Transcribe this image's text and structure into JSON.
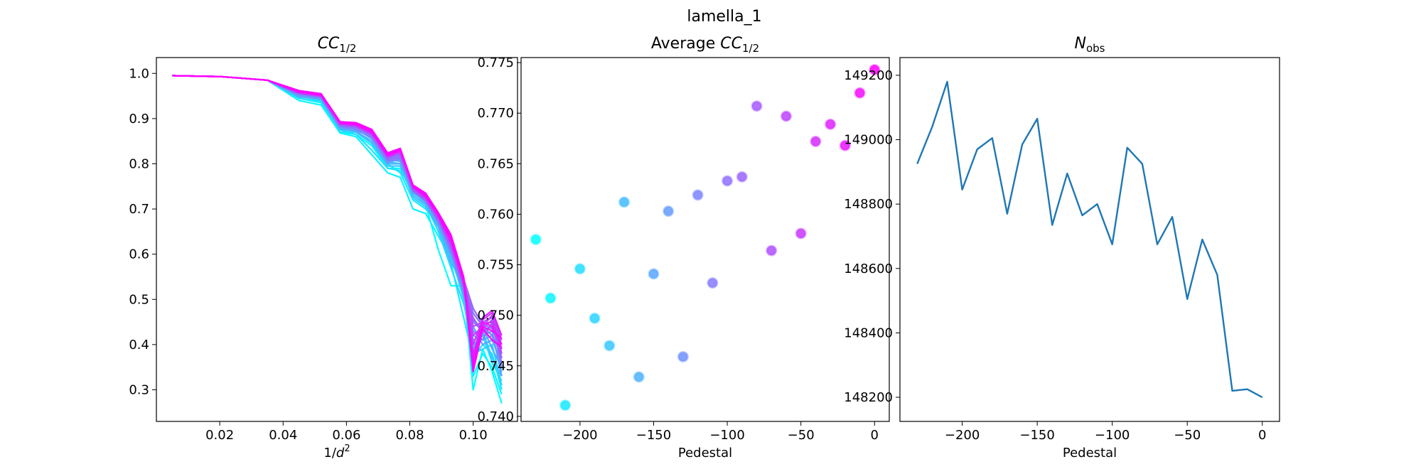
{
  "figure": {
    "suptitle": "lamella_1"
  },
  "chart_data": [
    {
      "type": "line",
      "title_main": "CC",
      "title_sub": "1/2",
      "xlabel_main": "1/d",
      "xlabel_sup": "2",
      "xlim": [
        0.0,
        0.114
      ],
      "ylim": [
        0.23,
        1.035
      ],
      "xticks": [
        0.02,
        0.04,
        0.06,
        0.08,
        0.1
      ],
      "xtick_labels": [
        "0.02",
        "0.04",
        "0.06",
        "0.08",
        "0.10"
      ],
      "yticks": [
        0.3,
        0.4,
        0.5,
        0.6,
        0.7,
        0.8,
        0.9,
        1.0
      ],
      "ytick_labels": [
        "0.3",
        "0.4",
        "0.5",
        "0.6",
        "0.7",
        "0.8",
        "0.9",
        "1.0"
      ],
      "colormap": [
        "#00ffff",
        "#ff00ff"
      ],
      "series_count": 24,
      "x": [
        0.005,
        0.02,
        0.035,
        0.045,
        0.052,
        0.058,
        0.063,
        0.068,
        0.073,
        0.077,
        0.081,
        0.085,
        0.089,
        0.093,
        0.097,
        0.1,
        0.103,
        0.106,
        0.109
      ],
      "series": [
        {
          "values": [
            0.995,
            0.993,
            0.985,
            0.945,
            0.935,
            0.87,
            0.865,
            0.84,
            0.79,
            0.79,
            0.73,
            0.71,
            0.61,
            0.53,
            0.53,
            0.3,
            0.39,
            0.34,
            0.27
          ]
        },
        {
          "values": [
            0.995,
            0.993,
            0.985,
            0.94,
            0.93,
            0.868,
            0.86,
            0.82,
            0.78,
            0.77,
            0.7,
            0.69,
            0.64,
            0.59,
            0.51,
            0.33,
            0.38,
            0.35,
            0.29
          ]
        },
        {
          "values": [
            0.995,
            0.993,
            0.985,
            0.95,
            0.94,
            0.87,
            0.87,
            0.85,
            0.8,
            0.78,
            0.72,
            0.7,
            0.67,
            0.58,
            0.46,
            0.37,
            0.4,
            0.38,
            0.3
          ]
        },
        {
          "values": [
            0.995,
            0.993,
            0.985,
            0.945,
            0.938,
            0.875,
            0.865,
            0.83,
            0.79,
            0.785,
            0.74,
            0.71,
            0.65,
            0.57,
            0.49,
            0.4,
            0.42,
            0.36,
            0.32
          ]
        },
        {
          "values": [
            0.995,
            0.993,
            0.985,
            0.952,
            0.945,
            0.88,
            0.875,
            0.86,
            0.805,
            0.8,
            0.725,
            0.705,
            0.66,
            0.6,
            0.5,
            0.38,
            0.39,
            0.4,
            0.31
          ]
        },
        {
          "values": [
            0.995,
            0.993,
            0.985,
            0.95,
            0.942,
            0.878,
            0.87,
            0.845,
            0.795,
            0.795,
            0.735,
            0.715,
            0.665,
            0.59,
            0.52,
            0.35,
            0.43,
            0.37,
            0.33
          ]
        },
        {
          "values": [
            0.995,
            0.993,
            0.985,
            0.955,
            0.948,
            0.882,
            0.88,
            0.865,
            0.81,
            0.805,
            0.745,
            0.72,
            0.67,
            0.61,
            0.53,
            0.42,
            0.41,
            0.42,
            0.34
          ]
        },
        {
          "values": [
            0.995,
            0.993,
            0.985,
            0.948,
            0.944,
            0.876,
            0.872,
            0.85,
            0.8,
            0.8,
            0.73,
            0.71,
            0.66,
            0.58,
            0.54,
            0.39,
            0.44,
            0.39,
            0.35
          ]
        },
        {
          "values": [
            0.995,
            0.993,
            0.985,
            0.953,
            0.946,
            0.884,
            0.878,
            0.855,
            0.808,
            0.808,
            0.74,
            0.725,
            0.675,
            0.62,
            0.51,
            0.44,
            0.4,
            0.41,
            0.36
          ]
        },
        {
          "values": [
            0.995,
            0.993,
            0.985,
            0.951,
            0.943,
            0.88,
            0.874,
            0.86,
            0.802,
            0.812,
            0.738,
            0.718,
            0.668,
            0.6,
            0.525,
            0.41,
            0.42,
            0.43,
            0.33
          ]
        },
        {
          "values": [
            0.995,
            0.993,
            0.985,
            0.956,
            0.95,
            0.886,
            0.882,
            0.862,
            0.815,
            0.815,
            0.748,
            0.722,
            0.672,
            0.615,
            0.535,
            0.45,
            0.43,
            0.44,
            0.37
          ]
        },
        {
          "values": [
            0.995,
            0.993,
            0.985,
            0.954,
            0.947,
            0.883,
            0.876,
            0.858,
            0.806,
            0.81,
            0.742,
            0.716,
            0.678,
            0.605,
            0.515,
            0.43,
            0.41,
            0.45,
            0.35
          ]
        },
        {
          "values": [
            0.995,
            0.993,
            0.985,
            0.957,
            0.949,
            0.887,
            0.884,
            0.866,
            0.812,
            0.818,
            0.745,
            0.724,
            0.68,
            0.625,
            0.54,
            0.47,
            0.44,
            0.42,
            0.38
          ]
        },
        {
          "values": [
            0.995,
            0.993,
            0.985,
            0.955,
            0.948,
            0.885,
            0.88,
            0.863,
            0.809,
            0.814,
            0.739,
            0.719,
            0.674,
            0.612,
            0.528,
            0.46,
            0.425,
            0.445,
            0.36
          ]
        },
        {
          "values": [
            0.995,
            0.993,
            0.985,
            0.958,
            0.951,
            0.889,
            0.886,
            0.868,
            0.817,
            0.82,
            0.747,
            0.727,
            0.683,
            0.628,
            0.545,
            0.48,
            0.445,
            0.435,
            0.39
          ]
        },
        {
          "values": [
            0.995,
            0.993,
            0.985,
            0.956,
            0.949,
            0.886,
            0.882,
            0.864,
            0.813,
            0.822,
            0.743,
            0.721,
            0.677,
            0.618,
            0.532,
            0.455,
            0.435,
            0.455,
            0.37
          ]
        },
        {
          "values": [
            0.995,
            0.993,
            0.985,
            0.959,
            0.952,
            0.89,
            0.888,
            0.87,
            0.819,
            0.825,
            0.749,
            0.729,
            0.686,
            0.632,
            0.548,
            0.44,
            0.45,
            0.46,
            0.4
          ]
        },
        {
          "values": [
            0.995,
            0.993,
            0.985,
            0.957,
            0.95,
            0.888,
            0.884,
            0.866,
            0.815,
            0.828,
            0.746,
            0.724,
            0.681,
            0.622,
            0.538,
            0.42,
            0.44,
            0.465,
            0.38
          ]
        },
        {
          "values": [
            0.995,
            0.993,
            0.985,
            0.96,
            0.953,
            0.891,
            0.889,
            0.872,
            0.82,
            0.83,
            0.75,
            0.731,
            0.688,
            0.636,
            0.542,
            0.4,
            0.455,
            0.47,
            0.41
          ]
        },
        {
          "values": [
            0.995,
            0.993,
            0.985,
            0.958,
            0.951,
            0.889,
            0.886,
            0.868,
            0.817,
            0.826,
            0.748,
            0.726,
            0.684,
            0.626,
            0.535,
            0.38,
            0.445,
            0.45,
            0.39
          ]
        },
        {
          "values": [
            0.995,
            0.993,
            0.985,
            0.961,
            0.954,
            0.892,
            0.89,
            0.874,
            0.822,
            0.832,
            0.752,
            0.733,
            0.69,
            0.64,
            0.548,
            0.37,
            0.46,
            0.475,
            0.42
          ]
        },
        {
          "values": [
            0.995,
            0.993,
            0.985,
            0.959,
            0.952,
            0.89,
            0.887,
            0.87,
            0.818,
            0.829,
            0.749,
            0.728,
            0.686,
            0.63,
            0.54,
            0.36,
            0.45,
            0.44,
            0.4
          ]
        },
        {
          "values": [
            0.995,
            0.993,
            0.985,
            0.962,
            0.955,
            0.893,
            0.891,
            0.876,
            0.824,
            0.834,
            0.753,
            0.735,
            0.692,
            0.643,
            0.55,
            0.35,
            0.44,
            0.43,
            0.415
          ]
        },
        {
          "values": [
            0.995,
            0.993,
            0.985,
            0.96,
            0.953,
            0.891,
            0.888,
            0.872,
            0.82,
            0.831,
            0.751,
            0.73,
            0.688,
            0.634,
            0.544,
            0.34,
            0.435,
            0.41,
            0.395
          ]
        }
      ]
    },
    {
      "type": "scatter",
      "title_prefix": "Average ",
      "title_main": "CC",
      "title_sub": "1/2",
      "xlabel": "Pedestal",
      "xlim": [
        -240,
        10
      ],
      "ylim": [
        0.7395,
        0.7755
      ],
      "xticks": [
        -200,
        -150,
        -100,
        -50,
        0
      ],
      "xtick_labels": [
        "−200",
        "−150",
        "−100",
        "−50",
        "0"
      ],
      "yticks": [
        0.74,
        0.745,
        0.75,
        0.755,
        0.76,
        0.765,
        0.77,
        0.775
      ],
      "ytick_labels": [
        "0.740",
        "0.745",
        "0.750",
        "0.755",
        "0.760",
        "0.765",
        "0.770",
        "0.775"
      ],
      "colormap": [
        "#00ffff",
        "#ff00ff"
      ],
      "x": [
        -230,
        -220,
        -210,
        -200,
        -190,
        -180,
        -170,
        -160,
        -150,
        -140,
        -130,
        -120,
        -110,
        -100,
        -90,
        -80,
        -70,
        -60,
        -50,
        -40,
        -30,
        -20,
        -10,
        0
      ],
      "y": [
        0.7575,
        0.7517,
        0.7411,
        0.7546,
        0.7497,
        0.747,
        0.7612,
        0.7439,
        0.7541,
        0.7603,
        0.7459,
        0.7619,
        0.7532,
        0.7633,
        0.7637,
        0.7707,
        0.7564,
        0.7697,
        0.7581,
        0.7672,
        0.7689,
        0.7668,
        0.772,
        0.7743
      ]
    },
    {
      "type": "line",
      "title_main": "N",
      "title_sub": "obs",
      "xlabel": "Pedestal",
      "xlim": [
        -241.5,
        11.5
      ],
      "ylim": [
        148125,
        149255
      ],
      "xticks": [
        -200,
        -150,
        -100,
        -50,
        0
      ],
      "xtick_labels": [
        "−200",
        "−150",
        "−100",
        "−50",
        "0"
      ],
      "yticks": [
        148200,
        148400,
        148600,
        148800,
        149000,
        149200
      ],
      "ytick_labels": [
        "148200",
        "148400",
        "148600",
        "148800",
        "149000",
        "149200"
      ],
      "line_color": "#1f77b4",
      "x": [
        -230,
        -220,
        -210,
        -200,
        -190,
        -180,
        -170,
        -160,
        -150,
        -140,
        -130,
        -120,
        -110,
        -100,
        -90,
        -80,
        -70,
        -60,
        -50,
        -40,
        -30,
        -20,
        -10,
        0
      ],
      "y": [
        148925,
        149040,
        149180,
        148845,
        148970,
        149005,
        148770,
        148985,
        149065,
        148735,
        148895,
        148765,
        148800,
        148675,
        148975,
        148925,
        148675,
        148760,
        148505,
        148690,
        148580,
        148220,
        148225,
        148200
      ]
    }
  ]
}
